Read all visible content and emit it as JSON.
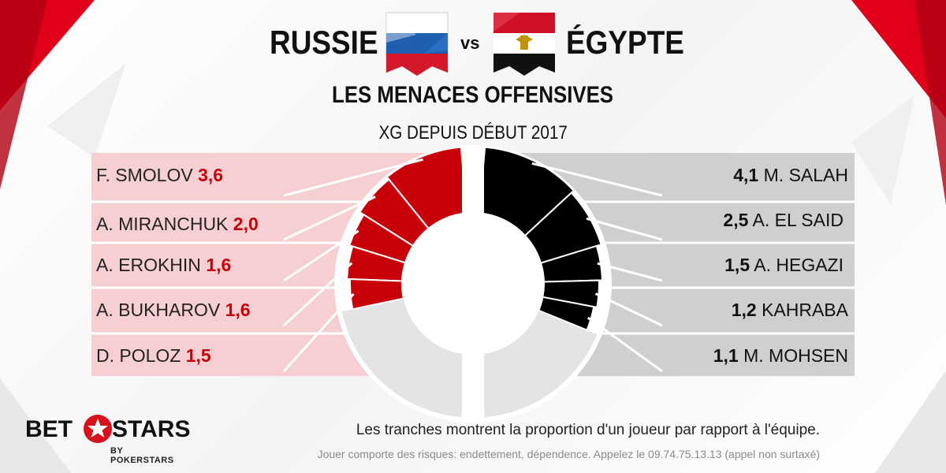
{
  "header": {
    "team_home": "RUSSIE",
    "vs": "vs",
    "team_away": "ÉGYPTE",
    "headline": "LES MENACES OFFENSIVES",
    "subline": "XG DEPUIS DÉBUT 2017"
  },
  "chart_data": {
    "type": "pie",
    "subtitle": "XG DEPUIS DÉBUT 2017",
    "series": [
      {
        "name": "RUSSIE",
        "color": "#c8000a",
        "players": [
          {
            "label": "F. SMOLOV",
            "value": 3.6,
            "display": "3,6"
          },
          {
            "label": "A. MIRANCHUK",
            "value": 2.0,
            "display": "2,0"
          },
          {
            "label": "A. EROKHIN",
            "value": 1.6,
            "display": "1,6"
          },
          {
            "label": "A. BUKHAROV",
            "value": 1.6,
            "display": "1,6"
          },
          {
            "label": "D. POLOZ",
            "value": 1.5,
            "display": "1,5"
          }
        ],
        "team_share_shown": 0.57
      },
      {
        "name": "ÉGYPTE",
        "color": "#000000",
        "players": [
          {
            "label": "M. SALAH",
            "value": 4.1,
            "display": "4,1"
          },
          {
            "label": "A. EL SAID",
            "value": 2.5,
            "display": "2,5"
          },
          {
            "label": "A. HEGAZI",
            "value": 1.5,
            "display": "1,5"
          },
          {
            "label": "KAHRABA",
            "value": 1.2,
            "display": "1,2"
          },
          {
            "label": "M. MOHSEN",
            "value": 1.1,
            "display": "1,1"
          }
        ],
        "team_share_shown": 0.63
      }
    ]
  },
  "footer": {
    "note": "Les tranches montrent la proportion d'un joueur par rapport à l'équipe.",
    "disclaimer": "Jouer comporte des risques: endettement, dépendence. Appelez le 09.74.75.13.13 (appel non surtaxé)",
    "logo_left": "BET",
    "logo_right": "STARS",
    "logo_sub": "BY POKERSTARS"
  },
  "colors": {
    "accent_red": "#c8000a",
    "panel_red": "#f5cfd1",
    "panel_grey": "#cfcfcf",
    "ring_grey": "#e4e4e4"
  },
  "icons": [
    "russia-flag-icon",
    "egypt-flag-icon",
    "star-icon"
  ]
}
